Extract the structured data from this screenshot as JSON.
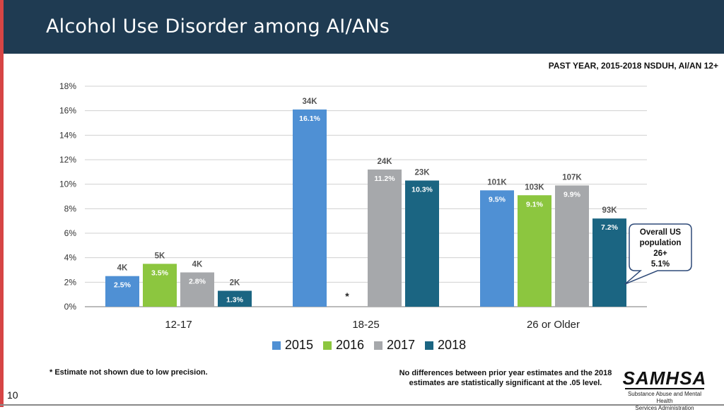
{
  "header": {
    "title": "Alcohol Use Disorder among AI/ANs"
  },
  "subtitle": "PAST YEAR, 2015-2018 NSDUH, AI/AN 12+",
  "chart_data": {
    "type": "bar",
    "categories": [
      "12-17",
      "18-25",
      "26 or Older"
    ],
    "ylim": [
      0,
      18
    ],
    "yticks": [
      "0%",
      "2%",
      "4%",
      "6%",
      "8%",
      "10%",
      "12%",
      "14%",
      "16%",
      "18%"
    ],
    "grid": true,
    "legend_position": "bottom",
    "series": [
      {
        "name": "2015",
        "color": "#4f90d4",
        "values": [
          2.5,
          null,
          9.5
        ],
        "labels": [
          "2.5%",
          "",
          "9.5%"
        ],
        "counts": [
          "4K",
          "",
          "101K"
        ]
      },
      {
        "name": "2016",
        "color": "#8cc63f",
        "values": [
          3.5,
          null,
          9.1
        ],
        "labels": [
          "3.5%",
          "",
          "9.1%"
        ],
        "counts": [
          "5K",
          "",
          "103K"
        ]
      },
      {
        "name": "2017",
        "color": "#a6a8ab",
        "values": [
          2.8,
          11.2,
          9.9
        ],
        "labels": [
          "2.8%",
          "11.2%",
          "9.9%"
        ],
        "counts": [
          "4K",
          "24K",
          "107K"
        ]
      },
      {
        "name": "2018",
        "color": "#1b6582",
        "values": [
          1.3,
          10.3,
          7.2
        ],
        "labels": [
          "1.3%",
          "10.3%",
          "7.2%"
        ],
        "counts": [
          "2K",
          "23K",
          "93K"
        ]
      }
    ],
    "series_values_override": {
      "2015_18-25": 16.1
    },
    "annotations": [
      {
        "text": "*",
        "category": "18-25",
        "series": "2016"
      }
    ],
    "callout": {
      "lines": [
        "Overall US",
        "population",
        "26+",
        "5.1%"
      ]
    }
  },
  "footnotes": {
    "left": "* Estimate not shown due to low precision.",
    "right": "No differences between prior year estimates and the 2018 estimates are statistically significant at the .05 level."
  },
  "page_number": "10",
  "logo": {
    "name": "SAMHSA",
    "sub1": "Substance Abuse and Mental Health",
    "sub2": "Services Administration"
  }
}
